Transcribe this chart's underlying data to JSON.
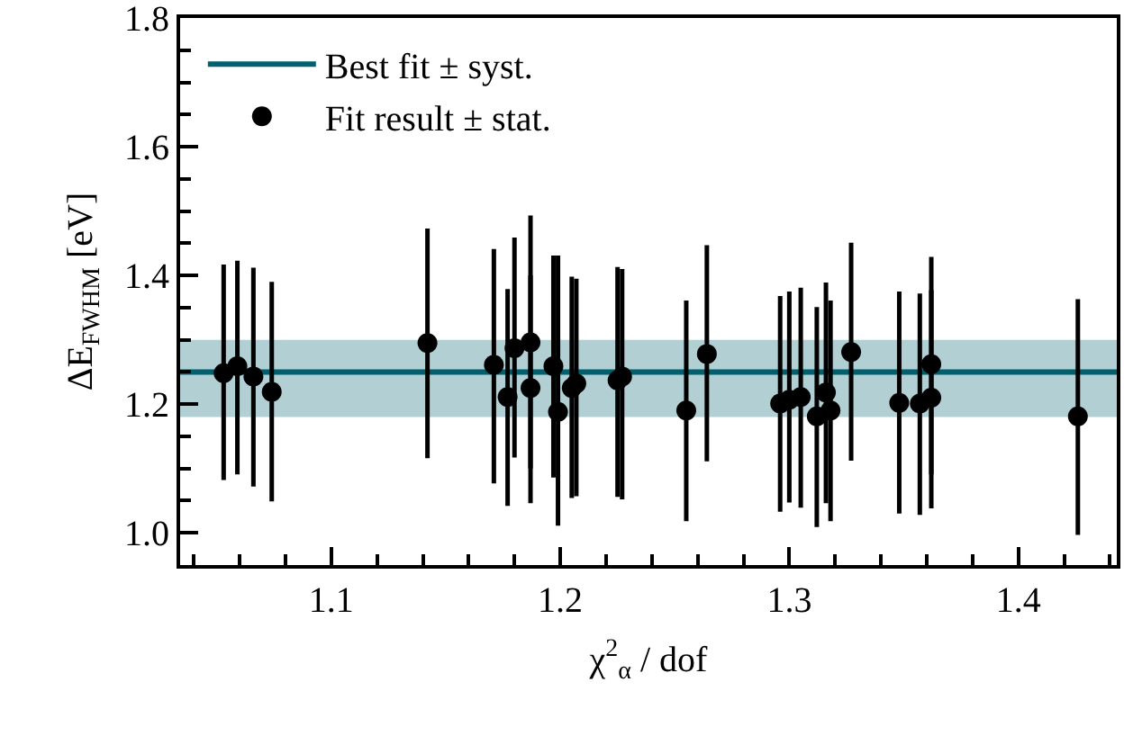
{
  "chart_data": {
    "type": "scatter",
    "xlabel": "χ$^{2}$$_{α}$ / dof",
    "ylabel": "ΔE$_{FWHM}$ [eV]",
    "xlim": [
      1.034,
      1.443
    ],
    "xticks": [
      1.1,
      1.2,
      1.3,
      1.4
    ],
    "ylim": [
      0.95,
      1.8
    ],
    "yticks": [
      {
        "value": 1,
        "label": "1.0"
      },
      {
        "value": 1.2,
        "label": "1.2"
      },
      {
        "value": 1.4,
        "label": "1.4"
      },
      {
        "value": 1.6,
        "label": "1.6"
      },
      {
        "value": 1.8,
        "label": "1.8"
      }
    ],
    "grid": false,
    "legend": "top left",
    "series": [
      {
        "type": "line",
        "name": "Best fit ± syst.",
        "color": "#00606e",
        "x": [
          1.034,
          1.443
        ],
        "values": [
          1.25,
          1.25
        ],
        "lower": [
          1.18,
          1.18
        ],
        "upper": [
          1.3,
          1.3
        ]
      },
      {
        "name": "Fit result ± stat.",
        "color": "#000000",
        "marker": "circle",
        "x": [
          1.053,
          1.059,
          1.066,
          1.074,
          1.142,
          1.171,
          1.177,
          1.18,
          1.187,
          1.187,
          1.197,
          1.199,
          1.205,
          1.207,
          1.225,
          1.227,
          1.255,
          1.264,
          1.296,
          1.3,
          1.305,
          1.312,
          1.316,
          1.318,
          1.327,
          1.348,
          1.357,
          1.362,
          1.362,
          1.426
        ],
        "values": [
          1.248,
          1.259,
          1.243,
          1.219,
          1.295,
          1.261,
          1.211,
          1.287,
          1.296,
          1.225,
          1.259,
          1.188,
          1.225,
          1.232,
          1.237,
          1.243,
          1.19,
          1.278,
          1.201,
          1.207,
          1.211,
          1.181,
          1.218,
          1.19,
          1.281,
          1.202,
          1.201,
          1.262,
          1.21,
          1.181
        ],
        "errors": [
          [
            1.082,
            1.417
          ],
          [
            1.091,
            1.423
          ],
          [
            1.072,
            1.412
          ],
          [
            1.049,
            1.39
          ],
          [
            1.116,
            1.473
          ],
          [
            1.077,
            1.441
          ],
          [
            1.042,
            1.379
          ],
          [
            1.117,
            1.459
          ],
          [
            1.1,
            1.493
          ],
          [
            1.046,
            1.4
          ],
          [
            1.086,
            1.431
          ],
          [
            1.011,
            1.431
          ],
          [
            1.054,
            1.398
          ],
          [
            1.057,
            1.395
          ],
          [
            1.056,
            1.413
          ],
          [
            1.052,
            1.41
          ],
          [
            1.018,
            1.361
          ],
          [
            1.111,
            1.447
          ],
          [
            1.033,
            1.368
          ],
          [
            1.047,
            1.375
          ],
          [
            1.039,
            1.381
          ],
          [
            1.009,
            1.351
          ],
          [
            1.046,
            1.389
          ],
          [
            1.018,
            1.361
          ],
          [
            1.112,
            1.451
          ],
          [
            1.03,
            1.375
          ],
          [
            1.028,
            1.372
          ],
          [
            1.091,
            1.429
          ],
          [
            1.038,
            1.377
          ],
          [
            0.997,
            1.363
          ]
        ]
      }
    ]
  }
}
